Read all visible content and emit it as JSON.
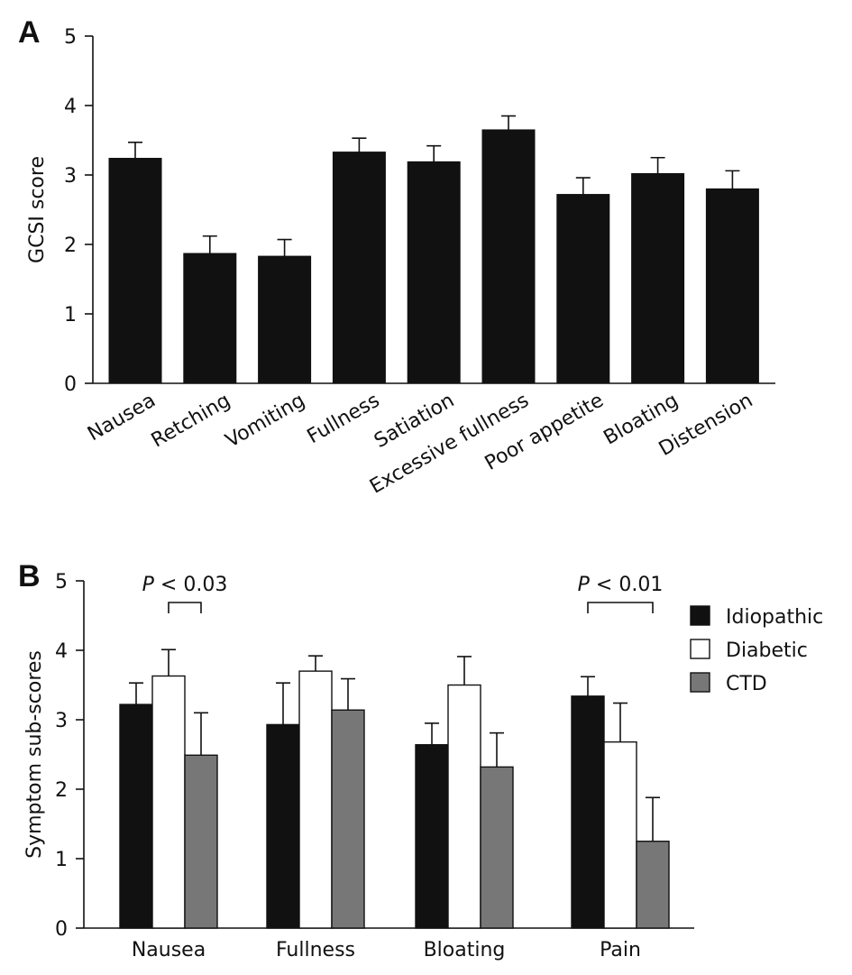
{
  "chart_data": [
    {
      "panel": "A",
      "type": "bar",
      "ylabel": "GCSI score",
      "ylim": [
        0,
        5
      ],
      "yticks": [
        "0",
        "1",
        "2",
        "3",
        "4",
        "5"
      ],
      "categories": [
        "Nausea",
        "Retching",
        "Vomiting",
        "Fullness",
        "Satiation",
        "Excessive fullness",
        "Poor appetite",
        "Bloating",
        "Distension"
      ],
      "values": [
        3.24,
        1.87,
        1.83,
        3.33,
        3.19,
        3.65,
        2.72,
        3.02,
        2.8
      ],
      "errors": [
        0.23,
        0.25,
        0.24,
        0.2,
        0.23,
        0.2,
        0.24,
        0.23,
        0.26
      ],
      "color": "#111111"
    },
    {
      "panel": "B",
      "type": "bar",
      "ylabel": "Symptom sub-scores",
      "ylim": [
        0,
        5
      ],
      "yticks": [
        "0",
        "1",
        "2",
        "3",
        "4",
        "5"
      ],
      "categories": [
        "Nausea",
        "Fullness",
        "Bloating",
        "Pain"
      ],
      "series": [
        {
          "name": "Idiopathic",
          "color": "#111111",
          "values": [
            3.22,
            2.93,
            2.64,
            3.34
          ],
          "errors": [
            0.31,
            0.6,
            0.31,
            0.28
          ]
        },
        {
          "name": "Diabetic",
          "color": "#ffffff",
          "values": [
            3.63,
            3.7,
            3.5,
            2.68
          ],
          "errors": [
            0.38,
            0.22,
            0.41,
            0.56
          ]
        },
        {
          "name": "CTD",
          "color": "#777777",
          "values": [
            2.49,
            3.14,
            2.32,
            1.25
          ],
          "errors": [
            0.61,
            0.45,
            0.49,
            0.63
          ]
        }
      ],
      "legend": "right",
      "annotations": [
        {
          "p": "P",
          "text": "< 0.03",
          "category": 0,
          "from_series": 1,
          "to_series": 2
        },
        {
          "p": "P",
          "text": "< 0.01",
          "category": 3,
          "from_series": 0,
          "to_series": 2
        }
      ]
    }
  ]
}
